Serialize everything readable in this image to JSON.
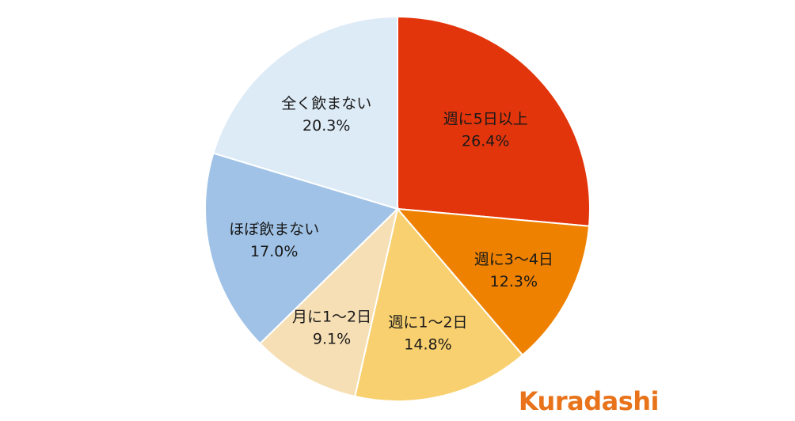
{
  "brand": {
    "text": "Kuradashi",
    "color": "#e8731a"
  },
  "chart_data": {
    "type": "pie",
    "title": "",
    "start_angle_deg": 0,
    "direction": "clockwise",
    "slices": [
      {
        "label": "週に5日以上",
        "value": 26.4,
        "value_label": "26.4%",
        "color": "#e3350b",
        "text_color": "#ffffff"
      },
      {
        "label": "週に3～4日",
        "value": 12.3,
        "value_label": "12.3%",
        "color": "#ee8100",
        "text_color": "#ffffff"
      },
      {
        "label": "週に1～2日",
        "value": 14.8,
        "value_label": "14.8%",
        "color": "#f8d06f",
        "text_color": "#1a1a1a"
      },
      {
        "label": "月に1～2日",
        "value": 9.1,
        "value_label": "9.1%",
        "color": "#f6dfb4",
        "text_color": "#1a1a1a"
      },
      {
        "label": "ほぼ飲まない",
        "value": 17.0,
        "value_label": "17.0%",
        "color": "#9fc2e6",
        "text_color": "#1a1a1a"
      },
      {
        "label": "全く飲まない",
        "value": 20.3,
        "value_label": "20.3%",
        "color": "#ddebf7",
        "text_color": "#1a1a1a"
      }
    ]
  }
}
